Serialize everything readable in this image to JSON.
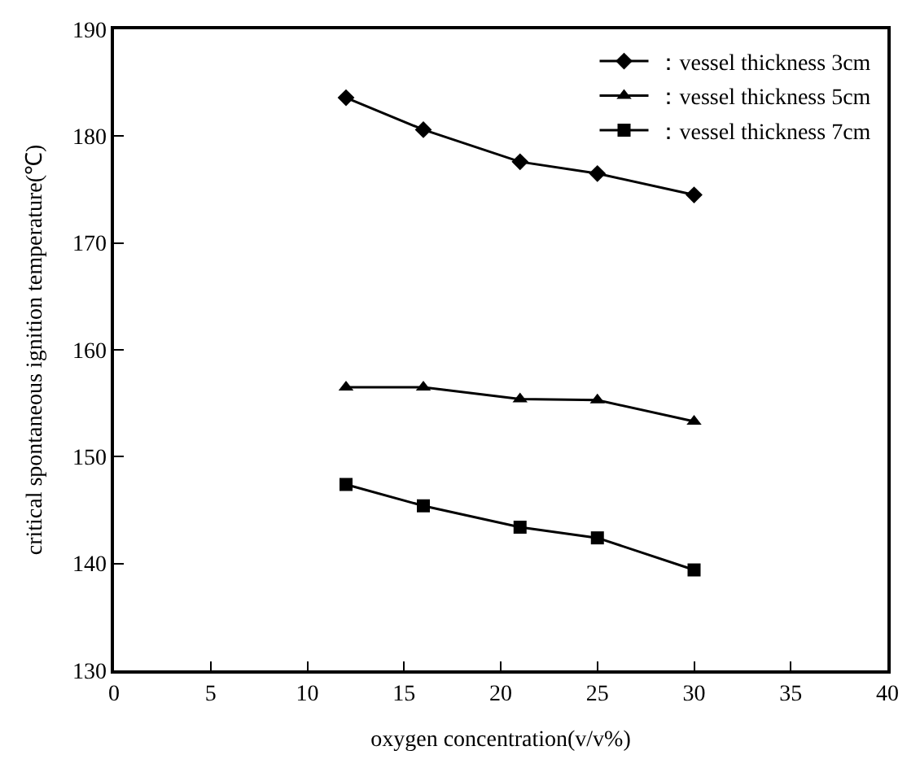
{
  "chart_data": {
    "type": "line",
    "xlabel": "oxygen concentration(v/v%)",
    "ylabel": "critical spontaneous ignition temperature(℃)",
    "x": [
      12,
      16,
      21,
      25,
      30
    ],
    "series": [
      {
        "name": "：vessel thickness 3cm",
        "color": "#000000",
        "marker": "diamond",
        "values": [
          183.6,
          180.6,
          177.6,
          176.5,
          174.5
        ]
      },
      {
        "name": "：vessel thickness 5cm",
        "color": "#000000",
        "marker": "triangle",
        "values": [
          156.5,
          156.5,
          155.4,
          155.3,
          153.3
        ]
      },
      {
        "name": "：vessel thickness 7cm",
        "color": "#000000",
        "marker": "square",
        "values": [
          147.4,
          145.4,
          143.4,
          142.4,
          139.4
        ]
      }
    ],
    "xlim": [
      0,
      40
    ],
    "xticks": [
      0,
      5,
      10,
      15,
      20,
      25,
      30,
      35,
      40
    ],
    "ylim": [
      130,
      190
    ],
    "yticks": [
      130,
      140,
      150,
      160,
      170,
      180,
      190
    ],
    "legend": "top right",
    "line_style": "solid"
  }
}
